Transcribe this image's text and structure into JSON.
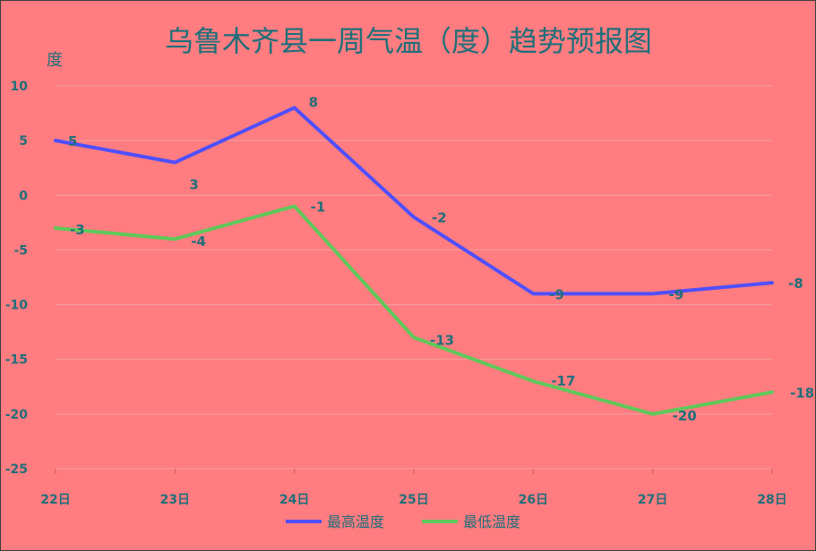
{
  "chart_data": {
    "type": "line",
    "title": "乌鲁木齐县一周气温（度）趋势预报图",
    "ylabel": "度",
    "categories": [
      "22日",
      "23日",
      "24日",
      "25日",
      "26日",
      "27日",
      "28日"
    ],
    "ylim": [
      -25,
      10
    ],
    "yticks": [
      10,
      5,
      0,
      -5,
      -10,
      -15,
      -20,
      -25
    ],
    "grid": true,
    "legend_position": "bottom",
    "series": [
      {
        "name": "最高温度",
        "color": "#4f4fff",
        "values": [
          5,
          3,
          8,
          -2,
          -9,
          -9,
          -8
        ]
      },
      {
        "name": "最低温度",
        "color": "#5fc85a",
        "values": [
          -3,
          -4,
          -1,
          -13,
          -17,
          -20,
          -18
        ]
      }
    ]
  }
}
